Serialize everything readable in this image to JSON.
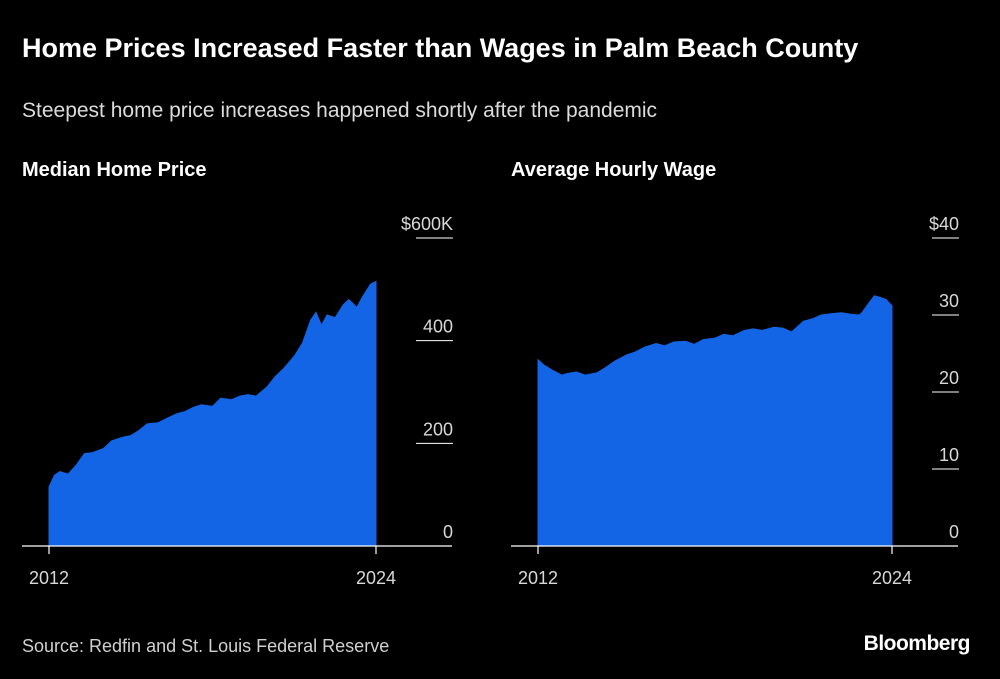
{
  "header": {
    "title": "Home Prices Increased Faster than Wages in Palm Beach County",
    "subtitle": "Steepest home price increases happened shortly after the pandemic"
  },
  "footer": {
    "source": "Source: Redfin and St. Louis Federal Reserve",
    "brand": "Bloomberg"
  },
  "colors": {
    "fill": "#1464e6",
    "background": "#000000",
    "axis": "#ffffff"
  },
  "chart_data": [
    {
      "type": "area",
      "title": "Median Home Price",
      "ylim": [
        0,
        600
      ],
      "yticks": [
        0,
        200,
        400,
        600
      ],
      "ytick_labels": [
        "0",
        "200",
        "400",
        "$600K"
      ],
      "xlim": [
        2012,
        2024
      ],
      "xticks": [
        2012,
        2024
      ],
      "xtick_labels": [
        "2012",
        "2024"
      ],
      "x": [
        2012.0,
        2012.2,
        2012.4,
        2012.7,
        2013.0,
        2013.3,
        2013.6,
        2014.0,
        2014.3,
        2014.7,
        2015.0,
        2015.3,
        2015.6,
        2016.0,
        2016.3,
        2016.7,
        2017.0,
        2017.3,
        2017.6,
        2018.0,
        2018.3,
        2018.7,
        2019.0,
        2019.3,
        2019.6,
        2020.0,
        2020.3,
        2020.6,
        2021.0,
        2021.3,
        2021.6,
        2021.8,
        2022.0,
        2022.2,
        2022.5,
        2022.8,
        2023.0,
        2023.3,
        2023.5,
        2023.8,
        2024.0
      ],
      "values": [
        115,
        138,
        145,
        140,
        158,
        180,
        182,
        190,
        205,
        212,
        215,
        225,
        238,
        240,
        248,
        258,
        262,
        270,
        275,
        272,
        288,
        285,
        292,
        295,
        292,
        310,
        330,
        345,
        370,
        395,
        440,
        455,
        430,
        450,
        445,
        470,
        480,
        465,
        485,
        510,
        515
      ]
    },
    {
      "type": "area",
      "title": "Average Hourly Wage",
      "ylim": [
        0,
        40
      ],
      "yticks": [
        0,
        10,
        20,
        30,
        40
      ],
      "ytick_labels": [
        "0",
        "10",
        "20",
        "30",
        "$40"
      ],
      "xlim": [
        2012,
        2024
      ],
      "xticks": [
        2012,
        2024
      ],
      "xtick_labels": [
        "2012",
        "2024"
      ],
      "x": [
        2012.0,
        2012.2,
        2012.5,
        2012.8,
        2013.0,
        2013.3,
        2013.6,
        2014.0,
        2014.3,
        2014.6,
        2015.0,
        2015.3,
        2015.6,
        2016.0,
        2016.3,
        2016.6,
        2017.0,
        2017.3,
        2017.6,
        2018.0,
        2018.3,
        2018.6,
        2019.0,
        2019.3,
        2019.6,
        2020.0,
        2020.3,
        2020.6,
        2021.0,
        2021.3,
        2021.6,
        2022.0,
        2022.3,
        2022.6,
        2022.9,
        2023.0,
        2023.2,
        2023.4,
        2023.6,
        2023.8,
        2024.0
      ],
      "values": [
        24.2,
        23.5,
        22.8,
        22.2,
        22.4,
        22.6,
        22.2,
        22.5,
        23.2,
        24.0,
        24.8,
        25.2,
        25.8,
        26.3,
        26.0,
        26.5,
        26.6,
        26.2,
        26.8,
        27.0,
        27.5,
        27.3,
        28.0,
        28.2,
        28.0,
        28.4,
        28.3,
        27.8,
        29.2,
        29.5,
        30.0,
        30.2,
        30.3,
        30.1,
        30.0,
        30.4,
        31.5,
        32.5,
        32.3,
        32.0,
        31.2
      ]
    }
  ]
}
